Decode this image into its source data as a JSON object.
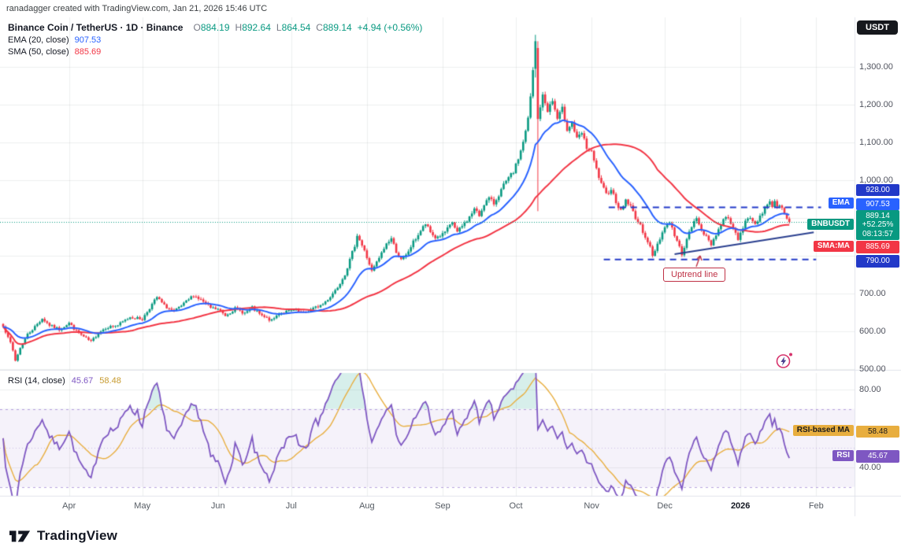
{
  "credit": "ranadagger created with TradingView.com, Jan 21, 2026 15:46 UTC",
  "header": {
    "symbol": "Binance Coin / TetherUS · 1D · Binance",
    "ohlc": {
      "o_label": "O",
      "o": "884.19",
      "h_label": "H",
      "h": "892.64",
      "l_label": "L",
      "l": "864.54",
      "c_label": "C",
      "c": "889.14",
      "change": "+4.94 (+0.56%)"
    },
    "ema": {
      "label": "EMA (20, close)",
      "value": "907.53"
    },
    "sma": {
      "label": "SMA (50, close)",
      "value": "885.69"
    }
  },
  "rsi_legend": {
    "label": "RSI (14, close)",
    "rsi_value": "45.67",
    "ma_value": "58.48"
  },
  "right_axis": {
    "unit": "USDT",
    "price_ticks": [
      {
        "label": "1,300.00",
        "value": 1300
      },
      {
        "label": "1,200.00",
        "value": 1200
      },
      {
        "label": "1,100.00",
        "value": 1100
      },
      {
        "label": "1,000.00",
        "value": 1000
      },
      {
        "label": "700.00",
        "value": 700
      },
      {
        "label": "600.00",
        "value": 600
      },
      {
        "label": "500.00",
        "value": 500
      }
    ],
    "price_badges": [
      {
        "name": "level-928-badge",
        "tag": null,
        "lines": [
          "928.00"
        ],
        "value": 928,
        "bg": "level",
        "fg": "#FFFFFF"
      },
      {
        "name": "ema-badge",
        "tag": "EMA",
        "lines": [
          "907.53"
        ],
        "value": 907.53,
        "bg": "ema",
        "fg": "#FFFFFF"
      },
      {
        "name": "last-price-badge",
        "tag": "BNBUSDT",
        "lines": [
          "889.14",
          "+52.25%",
          "08:13:57"
        ],
        "value": 889.14,
        "bg": "up",
        "fg": "#FFFFFF"
      },
      {
        "name": "sma-badge",
        "tag": "SMA:MA",
        "lines": [
          "885.69"
        ],
        "value": 885.69,
        "bg": "down",
        "fg": "#FFFFFF"
      },
      {
        "name": "level-790-badge",
        "tag": null,
        "lines": [
          "790.00"
        ],
        "value": 790,
        "bg": "level",
        "fg": "#FFFFFF"
      }
    ],
    "rsi_ticks": [
      {
        "label": "80.00",
        "value": 80
      },
      {
        "label": "40.00",
        "value": 40
      }
    ],
    "rsi_badges": [
      {
        "name": "rsi-ma-badge",
        "tag": "RSI-based MA",
        "lines": [
          "58.48"
        ],
        "value": 58.48,
        "bg": "rsi_ma",
        "fg": "#1B1B1B"
      },
      {
        "name": "rsi-badge",
        "tag": "RSI",
        "lines": [
          "45.67"
        ],
        "value": 45.67,
        "bg": "rsi",
        "fg": "#FFFFFF"
      }
    ]
  },
  "time_axis": [
    {
      "label": "Apr",
      "day": 27
    },
    {
      "label": "May",
      "day": 57
    },
    {
      "label": "Jun",
      "day": 88
    },
    {
      "label": "Jul",
      "day": 118
    },
    {
      "label": "Aug",
      "day": 149
    },
    {
      "label": "Sep",
      "day": 180
    },
    {
      "label": "Oct",
      "day": 210
    },
    {
      "label": "Nov",
      "day": 241
    },
    {
      "label": "Dec",
      "day": 271
    },
    {
      "label": "2026",
      "day": 302,
      "major": true
    },
    {
      "label": "Feb",
      "day": 333
    }
  ],
  "annotations": {
    "uptrend_label": "Uptrend line"
  },
  "footer": {
    "brand": "TradingView"
  },
  "colors": {
    "up": "#089981",
    "down": "#F23645",
    "ema": "#2962FF",
    "sma": "#F23645",
    "rsi": "#7E57C2",
    "rsi_ma": "#E8AE3F",
    "level": "#2239C8",
    "trend": "#2A3F8F",
    "grid": "rgba(42,46,57,0.08)",
    "divider": "#E0E3EB",
    "band_fill": "rgba(126,87,194,0.08)",
    "band_line": "rgba(126,87,194,0.55)",
    "band_mid": "rgba(126,87,194,0.35)",
    "overbought_fill": "rgba(8,153,129,0.16)",
    "callout": "#BF3145",
    "axis_text": "#50535E",
    "text": "#131722"
  },
  "chart_data": {
    "type": "candlestick",
    "symbol": "BNBUSDT",
    "name": "Binance Coin / TetherUS",
    "interval": "1D",
    "exchange": "Binance",
    "current": {
      "open": 884.19,
      "high": 892.64,
      "low": 864.54,
      "close": 889.14,
      "change": 4.94,
      "change_pct": 0.56,
      "pct_change_period": 52.25,
      "bar_countdown": "08:13:57"
    },
    "indicators": {
      "ema": {
        "period": 20,
        "source": "close",
        "last": 907.53
      },
      "sma": {
        "period": 50,
        "source": "close",
        "last": 885.69
      },
      "rsi": {
        "period": 14,
        "source": "close",
        "last": 45.67,
        "ma_last": 58.48,
        "bands": [
          70,
          50,
          30
        ],
        "axis_ticks": [
          80,
          40
        ]
      }
    },
    "levels": [
      {
        "name": "resistance",
        "value": 928.0,
        "from_day": 248,
        "to_day": 335
      },
      {
        "name": "support",
        "value": 790.0,
        "from_day": 246,
        "to_day": 333
      }
    ],
    "uptrend_line": {
      "from_day": 275,
      "from_price": 804,
      "to_day": 332,
      "to_price": 862
    },
    "price_axis_range": [
      440,
      1431
    ],
    "price_gridlines": [
      500,
      600,
      700,
      800,
      900,
      1000,
      1100,
      1200,
      1300
    ],
    "days_total": 323,
    "close_waypoints": [
      [
        0,
        612
      ],
      [
        2,
        588
      ],
      [
        4,
        548
      ],
      [
        5,
        522
      ],
      [
        7,
        556
      ],
      [
        10,
        592
      ],
      [
        13,
        612
      ],
      [
        16,
        634
      ],
      [
        19,
        616
      ],
      [
        23,
        605
      ],
      [
        27,
        622
      ],
      [
        30,
        600
      ],
      [
        33,
        585
      ],
      [
        36,
        572
      ],
      [
        39,
        596
      ],
      [
        42,
        610
      ],
      [
        47,
        616
      ],
      [
        52,
        638
      ],
      [
        57,
        632
      ],
      [
        60,
        662
      ],
      [
        63,
        690
      ],
      [
        66,
        668
      ],
      [
        70,
        652
      ],
      [
        74,
        672
      ],
      [
        78,
        696
      ],
      [
        82,
        678
      ],
      [
        85,
        662
      ],
      [
        88,
        658
      ],
      [
        91,
        642
      ],
      [
        95,
        660
      ],
      [
        99,
        648
      ],
      [
        102,
        662
      ],
      [
        106,
        640
      ],
      [
        110,
        628
      ],
      [
        113,
        648
      ],
      [
        116,
        652
      ],
      [
        119,
        655
      ],
      [
        123,
        648
      ],
      [
        127,
        660
      ],
      [
        131,
        672
      ],
      [
        134,
        692
      ],
      [
        137,
        718
      ],
      [
        140,
        752
      ],
      [
        142,
        788
      ],
      [
        144,
        828
      ],
      [
        145,
        856
      ],
      [
        146,
        842
      ],
      [
        148,
        812
      ],
      [
        150,
        778
      ],
      [
        151,
        758
      ],
      [
        153,
        782
      ],
      [
        155,
        806
      ],
      [
        157,
        832
      ],
      [
        159,
        846
      ],
      [
        161,
        812
      ],
      [
        163,
        788
      ],
      [
        165,
        800
      ],
      [
        168,
        836
      ],
      [
        171,
        866
      ],
      [
        173,
        884
      ],
      [
        175,
        862
      ],
      [
        177,
        848
      ],
      [
        180,
        856
      ],
      [
        182,
        870
      ],
      [
        184,
        888
      ],
      [
        186,
        862
      ],
      [
        188,
        878
      ],
      [
        191,
        902
      ],
      [
        193,
        924
      ],
      [
        195,
        906
      ],
      [
        197,
        938
      ],
      [
        199,
        952
      ],
      [
        201,
        938
      ],
      [
        203,
        962
      ],
      [
        205,
        986
      ],
      [
        207,
        1004
      ],
      [
        209,
        1022
      ],
      [
        210,
        1038
      ],
      [
        212,
        1078
      ],
      [
        214,
        1128
      ],
      [
        215,
        1162
      ],
      [
        216,
        1220
      ],
      [
        217,
        1288
      ],
      [
        218,
        1368
      ],
      [
        219,
        1162
      ],
      [
        220,
        1196
      ],
      [
        221,
        1222
      ],
      [
        223,
        1186
      ],
      [
        225,
        1210
      ],
      [
        227,
        1162
      ],
      [
        229,
        1188
      ],
      [
        231,
        1136
      ],
      [
        233,
        1152
      ],
      [
        235,
        1108
      ],
      [
        237,
        1124
      ],
      [
        239,
        1086
      ],
      [
        241,
        1072
      ],
      [
        243,
        1028
      ],
      [
        245,
        988
      ],
      [
        247,
        962
      ],
      [
        249,
        978
      ],
      [
        251,
        944
      ],
      [
        253,
        918
      ],
      [
        255,
        948
      ],
      [
        257,
        930
      ],
      [
        259,
        902
      ],
      [
        261,
        878
      ],
      [
        263,
        852
      ],
      [
        265,
        822
      ],
      [
        266,
        798
      ],
      [
        268,
        832
      ],
      [
        270,
        862
      ],
      [
        271,
        876
      ],
      [
        273,
        890
      ],
      [
        275,
        854
      ],
      [
        277,
        822
      ],
      [
        278,
        806
      ],
      [
        280,
        842
      ],
      [
        282,
        878
      ],
      [
        284,
        898
      ],
      [
        286,
        872
      ],
      [
        288,
        848
      ],
      [
        290,
        830
      ],
      [
        292,
        858
      ],
      [
        294,
        882
      ],
      [
        296,
        906
      ],
      [
        298,
        888
      ],
      [
        300,
        864
      ],
      [
        301,
        838
      ],
      [
        302,
        866
      ],
      [
        304,
        888
      ],
      [
        306,
        900
      ],
      [
        308,
        882
      ],
      [
        310,
        906
      ],
      [
        312,
        926
      ],
      [
        314,
        940
      ],
      [
        315,
        934
      ],
      [
        316,
        944
      ],
      [
        317,
        932
      ],
      [
        318,
        938
      ],
      [
        319,
        922
      ],
      [
        320,
        914
      ],
      [
        321,
        902
      ],
      [
        322,
        889.14
      ]
    ],
    "candle_overrides": {
      "218": [
        1295,
        1385,
        1272,
        1368
      ],
      "219": [
        1350,
        1368,
        918,
        1162
      ]
    }
  }
}
